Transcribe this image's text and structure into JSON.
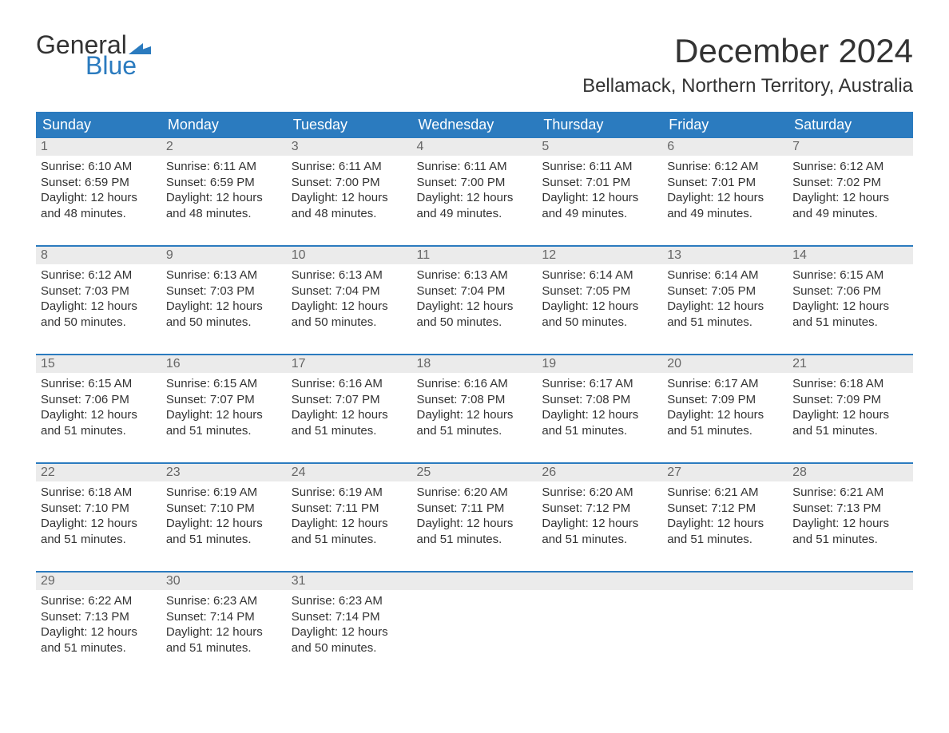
{
  "logo": {
    "text1": "General",
    "text2": "Blue",
    "flag_color": "#2b7bbf"
  },
  "title": "December 2024",
  "location": "Bellamack, Northern Territory, Australia",
  "colors": {
    "header_bg": "#2b7bbf",
    "header_text": "#ffffff",
    "daynum_bg": "#ebebeb",
    "daynum_text": "#666666",
    "body_text": "#333333",
    "row_divider": "#2b7bbf",
    "page_bg": "#ffffff"
  },
  "fonts": {
    "title_pt": 42,
    "location_pt": 24,
    "header_pt": 18,
    "daynum_pt": 16,
    "body_pt": 15
  },
  "day_headers": [
    "Sunday",
    "Monday",
    "Tuesday",
    "Wednesday",
    "Thursday",
    "Friday",
    "Saturday"
  ],
  "weeks": [
    [
      {
        "n": "1",
        "sr": "Sunrise: 6:10 AM",
        "ss": "Sunset: 6:59 PM",
        "d1": "Daylight: 12 hours",
        "d2": "and 48 minutes."
      },
      {
        "n": "2",
        "sr": "Sunrise: 6:11 AM",
        "ss": "Sunset: 6:59 PM",
        "d1": "Daylight: 12 hours",
        "d2": "and 48 minutes."
      },
      {
        "n": "3",
        "sr": "Sunrise: 6:11 AM",
        "ss": "Sunset: 7:00 PM",
        "d1": "Daylight: 12 hours",
        "d2": "and 48 minutes."
      },
      {
        "n": "4",
        "sr": "Sunrise: 6:11 AM",
        "ss": "Sunset: 7:00 PM",
        "d1": "Daylight: 12 hours",
        "d2": "and 49 minutes."
      },
      {
        "n": "5",
        "sr": "Sunrise: 6:11 AM",
        "ss": "Sunset: 7:01 PM",
        "d1": "Daylight: 12 hours",
        "d2": "and 49 minutes."
      },
      {
        "n": "6",
        "sr": "Sunrise: 6:12 AM",
        "ss": "Sunset: 7:01 PM",
        "d1": "Daylight: 12 hours",
        "d2": "and 49 minutes."
      },
      {
        "n": "7",
        "sr": "Sunrise: 6:12 AM",
        "ss": "Sunset: 7:02 PM",
        "d1": "Daylight: 12 hours",
        "d2": "and 49 minutes."
      }
    ],
    [
      {
        "n": "8",
        "sr": "Sunrise: 6:12 AM",
        "ss": "Sunset: 7:03 PM",
        "d1": "Daylight: 12 hours",
        "d2": "and 50 minutes."
      },
      {
        "n": "9",
        "sr": "Sunrise: 6:13 AM",
        "ss": "Sunset: 7:03 PM",
        "d1": "Daylight: 12 hours",
        "d2": "and 50 minutes."
      },
      {
        "n": "10",
        "sr": "Sunrise: 6:13 AM",
        "ss": "Sunset: 7:04 PM",
        "d1": "Daylight: 12 hours",
        "d2": "and 50 minutes."
      },
      {
        "n": "11",
        "sr": "Sunrise: 6:13 AM",
        "ss": "Sunset: 7:04 PM",
        "d1": "Daylight: 12 hours",
        "d2": "and 50 minutes."
      },
      {
        "n": "12",
        "sr": "Sunrise: 6:14 AM",
        "ss": "Sunset: 7:05 PM",
        "d1": "Daylight: 12 hours",
        "d2": "and 50 minutes."
      },
      {
        "n": "13",
        "sr": "Sunrise: 6:14 AM",
        "ss": "Sunset: 7:05 PM",
        "d1": "Daylight: 12 hours",
        "d2": "and 51 minutes."
      },
      {
        "n": "14",
        "sr": "Sunrise: 6:15 AM",
        "ss": "Sunset: 7:06 PM",
        "d1": "Daylight: 12 hours",
        "d2": "and 51 minutes."
      }
    ],
    [
      {
        "n": "15",
        "sr": "Sunrise: 6:15 AM",
        "ss": "Sunset: 7:06 PM",
        "d1": "Daylight: 12 hours",
        "d2": "and 51 minutes."
      },
      {
        "n": "16",
        "sr": "Sunrise: 6:15 AM",
        "ss": "Sunset: 7:07 PM",
        "d1": "Daylight: 12 hours",
        "d2": "and 51 minutes."
      },
      {
        "n": "17",
        "sr": "Sunrise: 6:16 AM",
        "ss": "Sunset: 7:07 PM",
        "d1": "Daylight: 12 hours",
        "d2": "and 51 minutes."
      },
      {
        "n": "18",
        "sr": "Sunrise: 6:16 AM",
        "ss": "Sunset: 7:08 PM",
        "d1": "Daylight: 12 hours",
        "d2": "and 51 minutes."
      },
      {
        "n": "19",
        "sr": "Sunrise: 6:17 AM",
        "ss": "Sunset: 7:08 PM",
        "d1": "Daylight: 12 hours",
        "d2": "and 51 minutes."
      },
      {
        "n": "20",
        "sr": "Sunrise: 6:17 AM",
        "ss": "Sunset: 7:09 PM",
        "d1": "Daylight: 12 hours",
        "d2": "and 51 minutes."
      },
      {
        "n": "21",
        "sr": "Sunrise: 6:18 AM",
        "ss": "Sunset: 7:09 PM",
        "d1": "Daylight: 12 hours",
        "d2": "and 51 minutes."
      }
    ],
    [
      {
        "n": "22",
        "sr": "Sunrise: 6:18 AM",
        "ss": "Sunset: 7:10 PM",
        "d1": "Daylight: 12 hours",
        "d2": "and 51 minutes."
      },
      {
        "n": "23",
        "sr": "Sunrise: 6:19 AM",
        "ss": "Sunset: 7:10 PM",
        "d1": "Daylight: 12 hours",
        "d2": "and 51 minutes."
      },
      {
        "n": "24",
        "sr": "Sunrise: 6:19 AM",
        "ss": "Sunset: 7:11 PM",
        "d1": "Daylight: 12 hours",
        "d2": "and 51 minutes."
      },
      {
        "n": "25",
        "sr": "Sunrise: 6:20 AM",
        "ss": "Sunset: 7:11 PM",
        "d1": "Daylight: 12 hours",
        "d2": "and 51 minutes."
      },
      {
        "n": "26",
        "sr": "Sunrise: 6:20 AM",
        "ss": "Sunset: 7:12 PM",
        "d1": "Daylight: 12 hours",
        "d2": "and 51 minutes."
      },
      {
        "n": "27",
        "sr": "Sunrise: 6:21 AM",
        "ss": "Sunset: 7:12 PM",
        "d1": "Daylight: 12 hours",
        "d2": "and 51 minutes."
      },
      {
        "n": "28",
        "sr": "Sunrise: 6:21 AM",
        "ss": "Sunset: 7:13 PM",
        "d1": "Daylight: 12 hours",
        "d2": "and 51 minutes."
      }
    ],
    [
      {
        "n": "29",
        "sr": "Sunrise: 6:22 AM",
        "ss": "Sunset: 7:13 PM",
        "d1": "Daylight: 12 hours",
        "d2": "and 51 minutes."
      },
      {
        "n": "30",
        "sr": "Sunrise: 6:23 AM",
        "ss": "Sunset: 7:14 PM",
        "d1": "Daylight: 12 hours",
        "d2": "and 51 minutes."
      },
      {
        "n": "31",
        "sr": "Sunrise: 6:23 AM",
        "ss": "Sunset: 7:14 PM",
        "d1": "Daylight: 12 hours",
        "d2": "and 50 minutes."
      },
      {
        "n": "",
        "sr": "",
        "ss": "",
        "d1": "",
        "d2": ""
      },
      {
        "n": "",
        "sr": "",
        "ss": "",
        "d1": "",
        "d2": ""
      },
      {
        "n": "",
        "sr": "",
        "ss": "",
        "d1": "",
        "d2": ""
      },
      {
        "n": "",
        "sr": "",
        "ss": "",
        "d1": "",
        "d2": ""
      }
    ]
  ]
}
